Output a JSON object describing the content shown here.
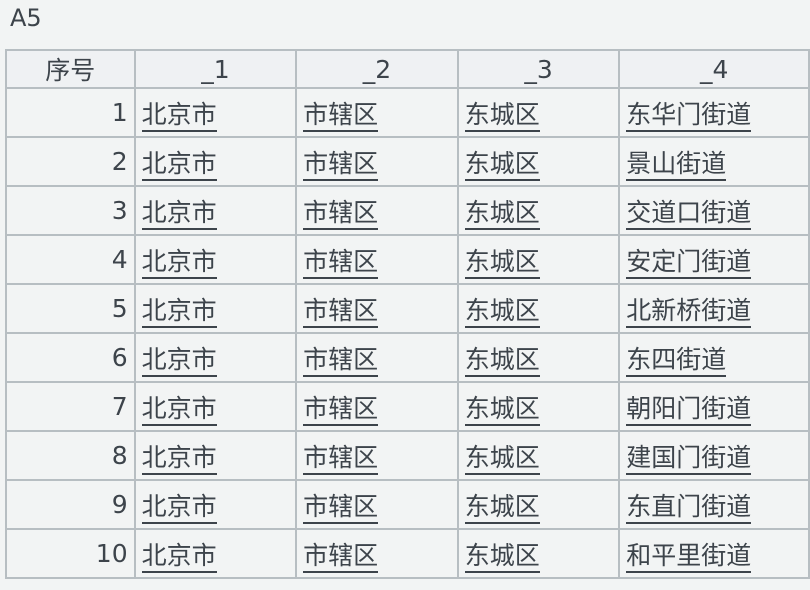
{
  "cell_name": "A5",
  "columns": [
    "序号",
    "_1",
    "_2",
    "_3",
    "_4"
  ],
  "rows": [
    [
      "1",
      "北京市",
      "市辖区",
      "东城区",
      "东华门街道"
    ],
    [
      "2",
      "北京市",
      "市辖区",
      "东城区",
      "景山街道"
    ],
    [
      "3",
      "北京市",
      "市辖区",
      "东城区",
      "交道口街道"
    ],
    [
      "4",
      "北京市",
      "市辖区",
      "东城区",
      "安定门街道"
    ],
    [
      "5",
      "北京市",
      "市辖区",
      "东城区",
      "北新桥街道"
    ],
    [
      "6",
      "北京市",
      "市辖区",
      "东城区",
      "东四街道"
    ],
    [
      "7",
      "北京市",
      "市辖区",
      "东城区",
      "朝阳门街道"
    ],
    [
      "8",
      "北京市",
      "市辖区",
      "东城区",
      "建国门街道"
    ],
    [
      "9",
      "北京市",
      "市辖区",
      "东城区",
      "东直门街道"
    ],
    [
      "10",
      "北京市",
      "市辖区",
      "东城区",
      "和平里街道"
    ]
  ]
}
